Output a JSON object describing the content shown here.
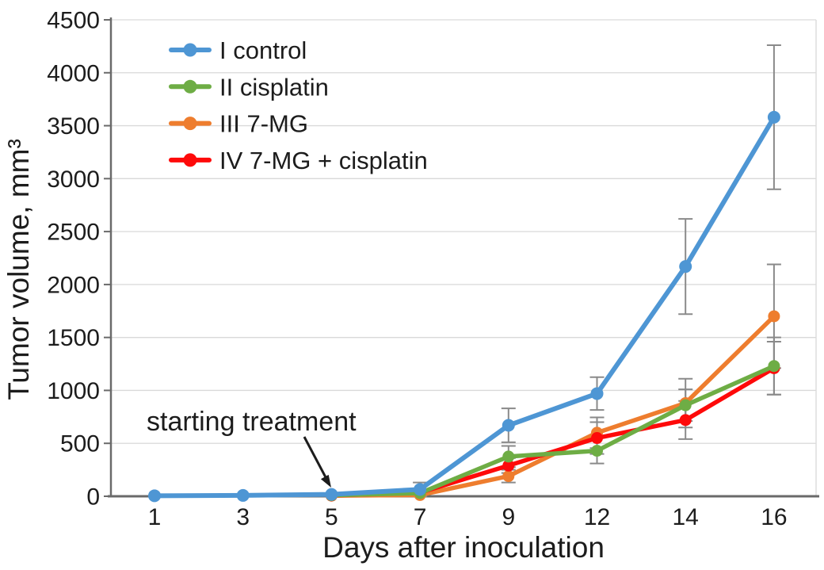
{
  "figure": {
    "background": "#ffffff",
    "text_color": "#1c1c1c",
    "axis_color": "#6a6a6a",
    "grid_color": "#d9d9d9",
    "error_bar_color": "#8a8a8a"
  },
  "chart_data": {
    "type": "line",
    "title": "",
    "xlabel": "Days after inoculation",
    "ylabel": "Tumor volume, mm³",
    "x_categories": [
      1,
      3,
      5,
      7,
      9,
      12,
      14,
      16
    ],
    "x_tick_labels": [
      "1",
      "3",
      "5",
      "7",
      "9",
      "12",
      "14",
      "16"
    ],
    "y_ticks": [
      0,
      500,
      1000,
      1500,
      2000,
      2500,
      3000,
      3500,
      4000,
      4500
    ],
    "y_tick_labels": [
      "0",
      "500",
      "1000",
      "1500",
      "2000",
      "2500",
      "3000",
      "3500",
      "4000",
      "4500"
    ],
    "ylim": [
      0,
      4500
    ],
    "grid": "horizontal",
    "legend_position": "top-left-inside",
    "annotation": {
      "text": "starting treatment",
      "points_to_day": 5
    },
    "series": [
      {
        "name": "I control",
        "color": "#4e96d4",
        "values": [
          5,
          8,
          18,
          65,
          670,
          970,
          2170,
          3580
        ],
        "errors": [
          0,
          0,
          0,
          65,
          160,
          155,
          450,
          680
        ]
      },
      {
        "name": "II cisplatin",
        "color": "#6ead45",
        "values": [
          null,
          null,
          10,
          30,
          375,
          430,
          860,
          1230
        ],
        "errors": [
          null,
          null,
          0,
          0,
          100,
          120,
          150,
          270
        ]
      },
      {
        "name": "III 7-MG",
        "color": "#ee7d2e",
        "values": [
          null,
          null,
          6,
          12,
          190,
          600,
          880,
          1700
        ],
        "errors": [
          null,
          null,
          0,
          0,
          60,
          145,
          230,
          490
        ]
      },
      {
        "name": "IV 7-MG + cisplatin",
        "color": "#fe0a0a",
        "values": [
          null,
          null,
          8,
          35,
          290,
          550,
          720,
          1210
        ],
        "errors": [
          null,
          null,
          0,
          0,
          70,
          150,
          180,
          250
        ]
      }
    ]
  }
}
